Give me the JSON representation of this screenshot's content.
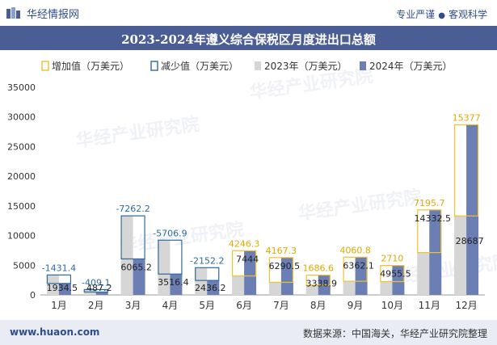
{
  "header": {
    "site_name": "华经情报网",
    "tagline_left": "专业严谨",
    "tagline_right": "客观科学"
  },
  "chart_data": {
    "type": "bar",
    "title": "2023-2024年遵义综合保税区月度进出口总额",
    "categories": [
      "1月",
      "2月",
      "3月",
      "4月",
      "5月",
      "6月",
      "7月",
      "8月",
      "9月",
      "10月",
      "11月",
      "12月"
    ],
    "series": [
      {
        "name": "2023年（万美元）",
        "values": [
          3365.9,
          896.3,
          13327.4,
          9223.3,
          4588.8,
          3197.7,
          2123.2,
          1652.3,
          2301.3,
          2245.5,
          7137.0,
          13310.0
        ]
      },
      {
        "name": "2024年（万美元）",
        "values": [
          1934.5,
          487.2,
          6065.2,
          3516.4,
          2436.2,
          7444,
          6290.5,
          3338.9,
          6362.1,
          4955.5,
          14332.5,
          28687
        ]
      }
    ],
    "changes": [
      -1431.4,
      -409.1,
      -7262.2,
      -5706.9,
      -2152.2,
      4246.3,
      4167.3,
      1686.6,
      4060.8,
      2710,
      7195.7,
      15377
    ],
    "change_series": [
      {
        "name": "增加值（万美元）",
        "color": "#f2c12e"
      },
      {
        "name": "减少值（万美元）",
        "color": "#2f6a9c"
      }
    ],
    "series_colors": [
      "#d6d6d6",
      "#6b7fb5"
    ],
    "y_ticks": [
      0,
      5000,
      10000,
      15000,
      20000,
      25000,
      30000,
      35000
    ],
    "ylim": [
      0,
      35000
    ],
    "legend_position": "top"
  },
  "watermark": "华经产业研究院",
  "footer": {
    "url": "www.huaon.com",
    "source": "数据来源：中国海关，华经产业研究院整理"
  }
}
